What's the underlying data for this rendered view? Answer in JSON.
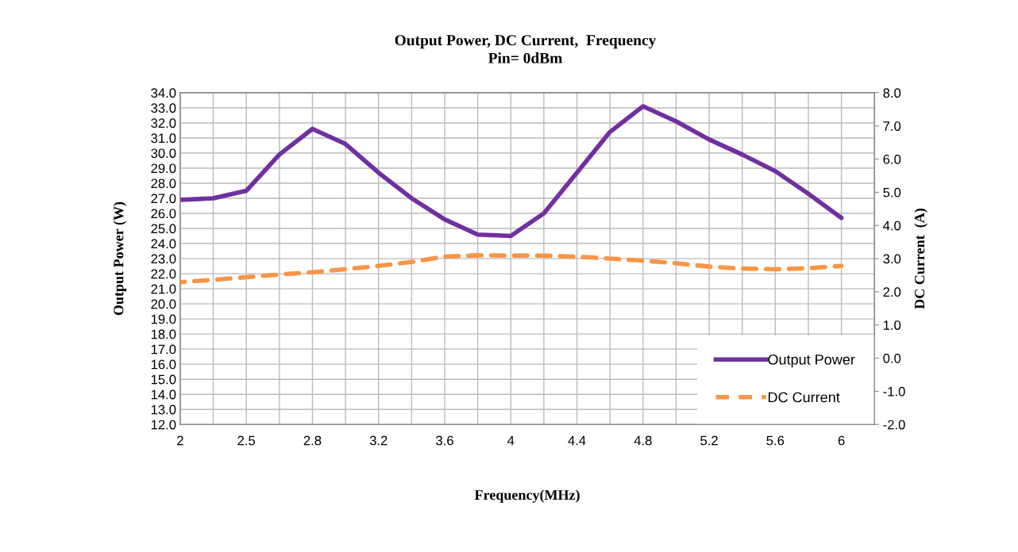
{
  "chart_data": {
    "type": "line",
    "title": "Output Power, DC Current,  Frequency",
    "subtitle": "Pin= 0dBm",
    "xlabel": "Frequency(MHz)",
    "ylabel": "Output Power (W)",
    "y2label": "DC Current  (A)",
    "categories": [
      "2",
      null,
      "2.5",
      null,
      "2.8",
      null,
      "3.2",
      null,
      "3.6",
      null,
      "4",
      null,
      "4.4",
      null,
      "4.8",
      null,
      "5.2",
      null,
      "5.6",
      null,
      "6",
      null
    ],
    "series": [
      {
        "name": "Output Power",
        "color": "#7030a0",
        "line_style": "solid",
        "values": [
          26.9,
          27.0,
          27.5,
          29.9,
          31.6,
          30.6,
          28.7,
          27.0,
          25.6,
          24.6,
          24.5,
          26.0,
          28.7,
          31.4,
          33.1,
          32.1,
          30.9,
          29.9,
          28.8,
          27.3,
          25.7,
          null
        ]
      },
      {
        "name": "DC Current",
        "color": "#f79646",
        "line_style": "dashed",
        "axis": "y2",
        "values": [
          2.29,
          2.36,
          2.44,
          2.52,
          2.59,
          2.68,
          2.78,
          2.9,
          3.06,
          3.1,
          3.09,
          3.09,
          3.06,
          3.0,
          2.94,
          2.86,
          2.76,
          2.7,
          2.68,
          2.71,
          2.78,
          null
        ]
      }
    ],
    "ylim": [
      12,
      34
    ],
    "yticks": [
      {
        "value": 12,
        "label": "12.0"
      },
      {
        "value": 13,
        "label": "13.0"
      },
      {
        "value": 14,
        "label": "14.0"
      },
      {
        "value": 15,
        "label": "15.0"
      },
      {
        "value": 16,
        "label": "16.0"
      },
      {
        "value": 17,
        "label": "17.0"
      },
      {
        "value": 18,
        "label": "18.0"
      },
      {
        "value": 19,
        "label": "19.0"
      },
      {
        "value": 20,
        "label": "20.0"
      },
      {
        "value": 21,
        "label": "21.0"
      },
      {
        "value": 22,
        "label": "22.0"
      },
      {
        "value": 23,
        "label": "23.0"
      },
      {
        "value": 24,
        "label": "24.0"
      },
      {
        "value": 25,
        "label": "25.0"
      },
      {
        "value": 26,
        "label": "26.0"
      },
      {
        "value": 27,
        "label": "27.0"
      },
      {
        "value": 28,
        "label": "28.0"
      },
      {
        "value": 29,
        "label": "29.0"
      },
      {
        "value": 30,
        "label": "30.0"
      },
      {
        "value": 31,
        "label": "31.0"
      },
      {
        "value": 32,
        "label": "32.0"
      },
      {
        "value": 33,
        "label": "33.0"
      },
      {
        "value": 34,
        "label": "34.0"
      }
    ],
    "y2lim": [
      -2,
      8
    ],
    "y2ticks": [
      {
        "value": -2,
        "label": "-2.0"
      },
      {
        "value": -1,
        "label": "-1.0"
      },
      {
        "value": 0,
        "label": "0.0"
      },
      {
        "value": 1,
        "label": "1.0"
      },
      {
        "value": 2,
        "label": "2.0"
      },
      {
        "value": 3,
        "label": "3.0"
      },
      {
        "value": 4,
        "label": "4.0"
      },
      {
        "value": 5,
        "label": "5.0"
      },
      {
        "value": 6,
        "label": "6.0"
      },
      {
        "value": 7,
        "label": "7.0"
      },
      {
        "value": 8,
        "label": "8.0"
      }
    ],
    "grid": true,
    "legend": "bottom right",
    "marker": "none"
  }
}
